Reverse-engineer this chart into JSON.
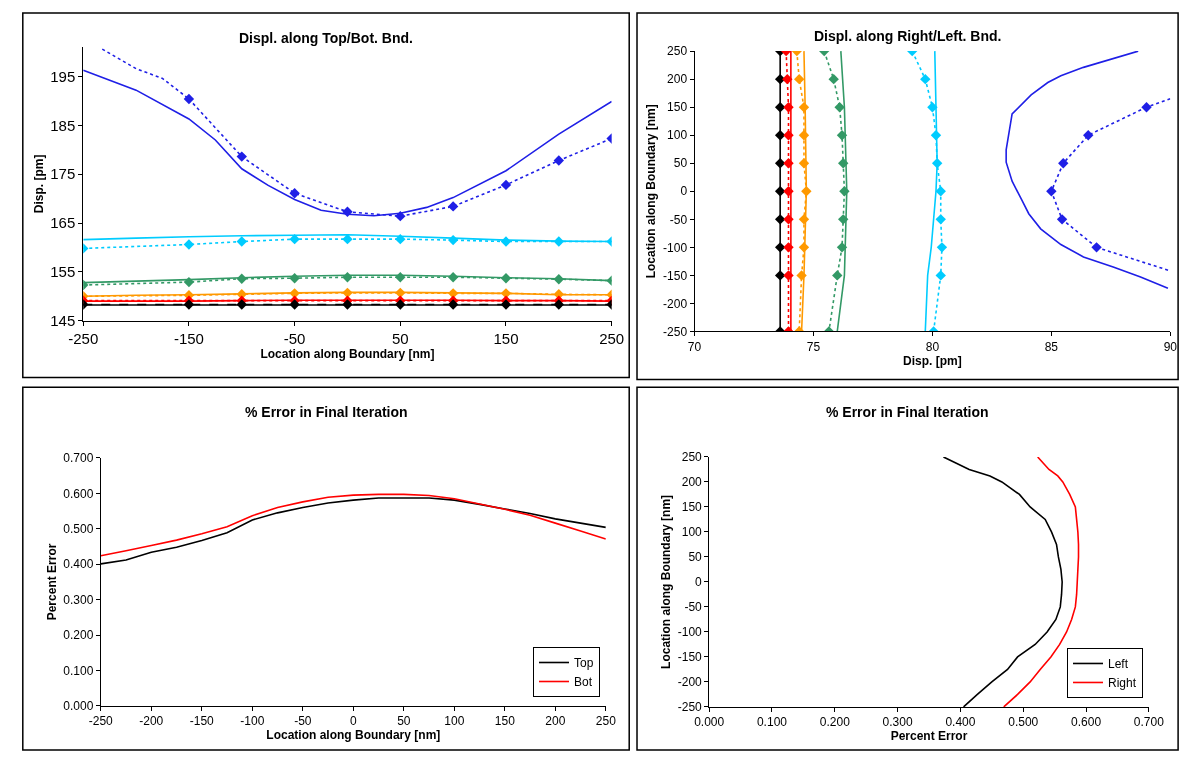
{
  "chart_data": [
    {
      "type": "line",
      "title": "Displ. along Top/Bot. Bnd.",
      "xlabel": "Location along Boundary [nm]",
      "ylabel": "Disp. [pm]",
      "xlim": [
        -250,
        250
      ],
      "xticks": [
        -250,
        -150,
        -50,
        50,
        150,
        250
      ],
      "ylim": [
        145,
        201
      ],
      "yticks": [
        145,
        155,
        165,
        175,
        185,
        195
      ],
      "legend": false,
      "series": [
        {
          "color": "#1f1fe6",
          "line_style": "solid",
          "marker": "none",
          "x": [
            -250,
            -200,
            -150,
            -125,
            -100,
            -75,
            -50,
            -25,
            0,
            25,
            50,
            75,
            100,
            150,
            200,
            250
          ],
          "values": [
            196.3,
            192.2,
            186.3,
            182.0,
            176.1,
            172.7,
            169.8,
            167.6,
            166.8,
            166.5,
            167.0,
            168.2,
            170.2,
            175.7,
            183.2,
            189.9
          ]
        },
        {
          "color": "#1f1fe6",
          "line_style": "dotted",
          "marker": "none",
          "x": [
            -232,
            -200,
            -175,
            -150
          ],
          "values": [
            200.6,
            196.6,
            194.6,
            190.4
          ]
        },
        {
          "color": "#1f1fe6",
          "line_style": "dotted",
          "marker": "diamond",
          "x": [
            -150,
            -100,
            -50,
            0,
            50,
            100,
            150,
            200,
            250
          ],
          "values": [
            190.4,
            178.6,
            171.1,
            167.3,
            166.4,
            168.4,
            172.8,
            177.8,
            182.3
          ]
        },
        {
          "color": "#00ccff",
          "line_style": "solid",
          "marker": "none",
          "x": [
            -250,
            -200,
            -150,
            -100,
            -50,
            0,
            50,
            100,
            150,
            200,
            250
          ],
          "values": [
            161.6,
            161.9,
            162.2,
            162.4,
            162.5,
            162.6,
            162.3,
            161.9,
            161.5,
            161.3,
            161.2
          ]
        },
        {
          "color": "#00ccff",
          "line_style": "dotted",
          "marker": "diamond",
          "x": [
            -250,
            -150,
            -100,
            -50,
            0,
            50,
            100,
            150,
            200,
            250
          ],
          "values": [
            159.8,
            160.6,
            161.2,
            161.7,
            161.7,
            161.7,
            161.5,
            161.2,
            161.2,
            161.2
          ]
        },
        {
          "color": "#339966",
          "line_style": "solid",
          "marker": "none",
          "x": [
            -250,
            -200,
            -150,
            -100,
            -50,
            0,
            50,
            100,
            150,
            200,
            250
          ],
          "values": [
            152.8,
            153.1,
            153.4,
            153.8,
            154.1,
            154.3,
            154.3,
            154.1,
            153.8,
            153.6,
            153.2
          ]
        },
        {
          "color": "#339966",
          "line_style": "dotted",
          "marker": "diamond",
          "x": [
            -250,
            -150,
            -100,
            -50,
            0,
            50,
            100,
            150,
            200,
            250
          ],
          "values": [
            152.3,
            152.9,
            153.6,
            153.7,
            153.9,
            153.9,
            153.9,
            153.7,
            153.5,
            153.2
          ]
        },
        {
          "color": "#ff9900",
          "line_style": "solid",
          "marker": "none",
          "x": [
            -250,
            -200,
            -150,
            -100,
            -50,
            0,
            50,
            100,
            150,
            200,
            250
          ],
          "values": [
            150.0,
            150.2,
            150.3,
            150.5,
            150.7,
            150.8,
            150.8,
            150.7,
            150.6,
            150.3,
            150.3
          ]
        },
        {
          "color": "#ff9900",
          "line_style": "dotted",
          "marker": "diamond",
          "x": [
            -250,
            -150,
            -100,
            -50,
            0,
            50,
            100,
            150,
            200,
            250
          ],
          "values": [
            150.0,
            150.2,
            150.4,
            150.6,
            150.7,
            150.7,
            150.6,
            150.6,
            150.4,
            150.3
          ]
        },
        {
          "color": "#ff0000",
          "line_style": "solid",
          "marker": "none",
          "x": [
            -250,
            -200,
            -150,
            -100,
            -50,
            0,
            50,
            100,
            150,
            200,
            250
          ],
          "values": [
            149.0,
            149.0,
            149.0,
            149.1,
            149.2,
            149.2,
            149.2,
            149.2,
            149.1,
            149.1,
            149.0
          ]
        },
        {
          "color": "#ff0000",
          "line_style": "dotted",
          "marker": "diamond",
          "x": [
            -250,
            -150,
            -100,
            -50,
            0,
            50,
            100,
            150,
            200,
            250
          ],
          "values": [
            149.1,
            149.1,
            149.1,
            149.1,
            149.1,
            149.1,
            149.1,
            149.1,
            149.1,
            149.1
          ]
        },
        {
          "color": "#000000",
          "line_style": "solid",
          "marker": "none",
          "x": [
            -250,
            250
          ],
          "values": [
            148.2,
            148.2
          ]
        },
        {
          "color": "#000000",
          "line_style": "dashed",
          "marker": "diamond",
          "x": [
            -250,
            -150,
            -100,
            -50,
            0,
            50,
            100,
            150,
            200,
            250
          ],
          "values": [
            148.3,
            148.3,
            148.3,
            148.3,
            148.3,
            148.3,
            148.3,
            148.3,
            148.3,
            148.3
          ]
        }
      ]
    },
    {
      "type": "line",
      "title": "Displ. along Right/Left. Bnd.",
      "xlabel": "Disp. [pm]",
      "ylabel": "Location along Boundary [nm]",
      "xlim": [
        70,
        90
      ],
      "xticks": [
        70,
        75,
        80,
        85,
        90
      ],
      "ylim": [
        -250,
        250
      ],
      "yticks": [
        -250,
        -200,
        -150,
        -100,
        -50,
        0,
        50,
        100,
        150,
        200,
        250
      ],
      "legend": false,
      "series": [
        {
          "color": "#000000",
          "line_style": "solid",
          "marker": "diamond",
          "x": [
            73.6,
            73.6,
            73.6,
            73.6,
            73.6,
            73.6,
            73.6,
            73.6,
            73.6,
            73.6
          ],
          "values": [
            250,
            200,
            150,
            100,
            50,
            0,
            -50,
            -100,
            -150,
            -250
          ]
        },
        {
          "color": "#ff0000",
          "line_style": "solid",
          "marker": "none",
          "x": [
            74.05,
            74.05
          ],
          "values": [
            250,
            -250
          ]
        },
        {
          "color": "#ff0000",
          "line_style": "dotted",
          "marker": "diamond",
          "x": [
            73.85,
            73.9,
            73.95,
            73.95,
            73.95,
            73.95,
            73.95,
            73.95,
            73.95,
            73.95
          ],
          "values": [
            250,
            200,
            150,
            100,
            50,
            0,
            -50,
            -100,
            -150,
            -250
          ]
        },
        {
          "color": "#ff9900",
          "line_style": "solid",
          "marker": "none",
          "x": [
            74.6,
            74.65,
            74.7,
            74.6,
            74.5
          ],
          "values": [
            250,
            150,
            0,
            -150,
            -250
          ]
        },
        {
          "color": "#ff9900",
          "line_style": "dotted",
          "marker": "diamond",
          "x": [
            74.3,
            74.4,
            74.6,
            74.6,
            74.6,
            74.7,
            74.6,
            74.6,
            74.5,
            74.4
          ],
          "values": [
            250,
            200,
            150,
            100,
            50,
            0,
            -50,
            -100,
            -150,
            -250
          ]
        },
        {
          "color": "#339966",
          "line_style": "solid",
          "marker": "none",
          "x": [
            76.15,
            76.3,
            76.4,
            76.3,
            76.0
          ],
          "values": [
            250,
            150,
            0,
            -150,
            -250
          ]
        },
        {
          "color": "#339966",
          "line_style": "dotted",
          "marker": "diamond",
          "x": [
            75.45,
            75.85,
            76.1,
            76.2,
            76.25,
            76.3,
            76.25,
            76.2,
            76.0,
            75.65
          ],
          "values": [
            250,
            200,
            150,
            100,
            50,
            0,
            -50,
            -100,
            -150,
            -250
          ]
        },
        {
          "color": "#00ccff",
          "line_style": "solid",
          "marker": "none",
          "x": [
            80.1,
            80.15,
            80.2,
            80.15,
            79.95,
            79.8,
            79.7
          ],
          "values": [
            250,
            150,
            50,
            0,
            -100,
            -150,
            -250
          ]
        },
        {
          "color": "#00ccff",
          "line_style": "dotted",
          "marker": "diamond",
          "x": [
            79.15,
            79.7,
            80.0,
            80.15,
            80.2,
            80.35,
            80.35,
            80.4,
            80.35,
            80.05
          ],
          "values": [
            250,
            200,
            150,
            100,
            50,
            0,
            -50,
            -100,
            -150,
            -250
          ]
        },
        {
          "color": "#1f1fe6",
          "line_style": "solid",
          "marker": "none",
          "x": [
            88.65,
            86.35,
            85.4,
            84.85,
            84.15,
            83.35,
            83.1,
            83.1,
            83.35,
            83.75,
            84.05,
            84.55,
            85.4,
            86.35,
            87.6,
            88.75,
            89.9
          ],
          "values": [
            250,
            221,
            206,
            194,
            172,
            138,
            74,
            52,
            18,
            -15,
            -40,
            -67,
            -95,
            -117,
            -135,
            -153,
            -173
          ]
        },
        {
          "color": "#1f1fe6",
          "line_style": "dotted",
          "marker": "diamond",
          "x": [
            89.0,
            86.55,
            85.5,
            85.0,
            85.45,
            86.9
          ],
          "values": [
            150,
            100,
            50,
            0,
            -50,
            -100
          ]
        },
        {
          "color": "#1f1fe6",
          "line_style": "dotted",
          "marker": "none",
          "x": [
            90.0,
            89.0
          ],
          "values": [
            165,
            150
          ]
        },
        {
          "color": "#1f1fe6",
          "line_style": "dotted",
          "marker": "none",
          "x": [
            86.9,
            88.6,
            90.0
          ],
          "values": [
            -100,
            -123,
            -142
          ]
        }
      ]
    },
    {
      "type": "line",
      "title": "% Error in Final Iteration",
      "xlabel": "Location along Boundary [nm]",
      "ylabel": "Percent Error",
      "xlim": [
        -250,
        250
      ],
      "xticks": [
        -250,
        -200,
        -150,
        -100,
        -50,
        0,
        50,
        100,
        150,
        200,
        250
      ],
      "ylim": [
        0,
        0.7
      ],
      "yticks": [
        {
          "value": 0,
          "label": "0.000"
        },
        {
          "value": 0.1,
          "label": "0.100"
        },
        {
          "value": 0.2,
          "label": "0.200"
        },
        {
          "value": 0.3,
          "label": "0.300"
        },
        {
          "value": 0.4,
          "label": "0.400"
        },
        {
          "value": 0.5,
          "label": "0.500"
        },
        {
          "value": 0.6,
          "label": "0.600"
        },
        {
          "value": 0.7,
          "label": "0.700"
        }
      ],
      "legend": "bottom right",
      "series": [
        {
          "name": "Top",
          "color": "#000000",
          "line_style": "solid",
          "marker": "none",
          "x": [
            -250,
            -225,
            -200,
            -175,
            -150,
            -125,
            -100,
            -75,
            -50,
            -25,
            0,
            25,
            50,
            75,
            100,
            125,
            150,
            175,
            200,
            225,
            250
          ],
          "values": [
            0.401,
            0.412,
            0.434,
            0.448,
            0.467,
            0.489,
            0.525,
            0.545,
            0.56,
            0.573,
            0.581,
            0.587,
            0.587,
            0.587,
            0.581,
            0.569,
            0.556,
            0.543,
            0.528,
            0.516,
            0.504
          ]
        },
        {
          "name": "Bot",
          "color": "#ff0000",
          "line_style": "solid",
          "marker": "none",
          "x": [
            -250,
            -225,
            -200,
            -175,
            -150,
            -125,
            -100,
            -75,
            -50,
            -25,
            0,
            25,
            50,
            75,
            100,
            125,
            150,
            175,
            200,
            225,
            250
          ],
          "values": [
            0.424,
            0.438,
            0.453,
            0.468,
            0.486,
            0.506,
            0.537,
            0.56,
            0.576,
            0.589,
            0.595,
            0.597,
            0.597,
            0.594,
            0.585,
            0.57,
            0.555,
            0.538,
            0.516,
            0.494,
            0.471
          ]
        }
      ]
    },
    {
      "type": "line",
      "title": "% Error in Final Iteration",
      "xlabel": "Percent Error",
      "ylabel": "Location along Boundary [nm]",
      "xlim": [
        0,
        0.7
      ],
      "xticks": [
        {
          "value": 0,
          "label": "0.000"
        },
        {
          "value": 0.1,
          "label": "0.100"
        },
        {
          "value": 0.2,
          "label": "0.200"
        },
        {
          "value": 0.3,
          "label": "0.300"
        },
        {
          "value": 0.4,
          "label": "0.400"
        },
        {
          "value": 0.5,
          "label": "0.500"
        },
        {
          "value": 0.6,
          "label": "0.600"
        },
        {
          "value": 0.7,
          "label": "0.700"
        }
      ],
      "ylim": [
        -250,
        250
      ],
      "yticks": [
        -250,
        -200,
        -150,
        -100,
        -50,
        0,
        50,
        100,
        150,
        200,
        250
      ],
      "legend": "bottom right",
      "series": [
        {
          "name": "Left",
          "color": "#000000",
          "line_style": "solid",
          "marker": "none",
          "x": [
            0.373,
            0.414,
            0.447,
            0.466,
            0.494,
            0.511,
            0.535,
            0.545,
            0.553,
            0.556,
            0.56,
            0.562,
            0.561,
            0.559,
            0.552,
            0.538,
            0.519,
            0.491,
            0.475,
            0.45,
            0.427,
            0.405
          ],
          "values": [
            250,
            225,
            212,
            200,
            175,
            150,
            125,
            100,
            75,
            50,
            25,
            0,
            -25,
            -50,
            -75,
            -100,
            -125,
            -150,
            -175,
            -200,
            -225,
            -250
          ]
        },
        {
          "name": "Right",
          "color": "#ff0000",
          "line_style": "solid",
          "marker": "none",
          "x": [
            0.523,
            0.541,
            0.555,
            0.563,
            0.574,
            0.583,
            0.585,
            0.587,
            0.588,
            0.588,
            0.587,
            0.586,
            0.585,
            0.583,
            0.577,
            0.569,
            0.558,
            0.544,
            0.527,
            0.511,
            0.491,
            0.469
          ],
          "values": [
            250,
            225,
            212,
            200,
            175,
            150,
            125,
            100,
            75,
            50,
            25,
            0,
            -25,
            -50,
            -75,
            -100,
            -125,
            -150,
            -175,
            -200,
            -225,
            -250
          ]
        }
      ]
    }
  ]
}
